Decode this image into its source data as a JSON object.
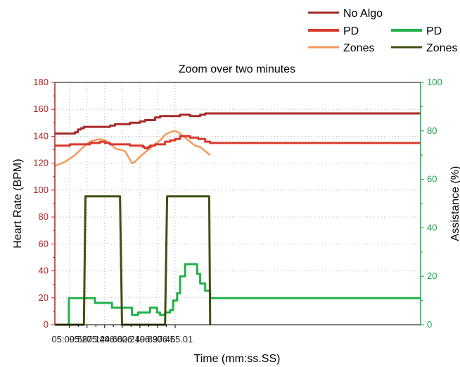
{
  "chart_data": {
    "type": "line",
    "title": "Zoom over two minutes",
    "xlabel": "Time (mm:ss.SS)",
    "ylabel_left": "Heart Rate (BPM)",
    "ylabel_right": "Assistance (%)",
    "x_unit": "seconds",
    "xlim": [
      295,
      660
    ],
    "x_ticks": [
      309.58,
      327.12,
      344.68,
      362.24,
      379.89,
      397.46,
      415.01
    ],
    "x_tick_labels": [
      "05:09.58",
      "05:27.12",
      "05:44.68",
      "06:02.24",
      "06:19.89",
      "06:37.46",
      "06:55.01"
    ],
    "ylim_left": [
      0,
      180
    ],
    "y_ticks_left": [
      0,
      20,
      40,
      60,
      80,
      100,
      120,
      140,
      160,
      180
    ],
    "ylim_right": [
      0,
      100
    ],
    "y_ticks_right": [
      0,
      20,
      40,
      60,
      80,
      100
    ],
    "grid": true,
    "legend_heart": [
      "No Algo",
      "PD",
      "Zones"
    ],
    "legend_assist": [
      "PD",
      "Zones"
    ],
    "colors": {
      "no_algo": "#a52a2a",
      "pd_hr": "#d83a2e",
      "zones_hr": "#f4995c",
      "pd_assist": "#22b04b",
      "zones_assist": "#3f4f12",
      "left_axis": "#b22222",
      "right_axis": "#1aa34a"
    },
    "series": [
      {
        "name": "No Algo",
        "axis": "left",
        "style": "step",
        "x": [
          295,
          315,
          318,
          321,
          324,
          327,
          350,
          355,
          360,
          365,
          370,
          380,
          385,
          395,
          400,
          420,
          425,
          430,
          440,
          445,
          450
        ],
        "values": [
          142,
          143,
          145,
          146,
          147,
          147,
          148,
          149,
          149,
          149,
          150,
          151,
          152,
          154,
          155,
          156,
          156,
          155,
          156,
          157,
          157
        ]
      },
      {
        "name": "PD",
        "axis": "left",
        "style": "step",
        "x": [
          295,
          310,
          330,
          340,
          345,
          350,
          370,
          380,
          383,
          385,
          388,
          390,
          395,
          400,
          405,
          410,
          415,
          420,
          425,
          430,
          438,
          445,
          450
        ],
        "values": [
          133,
          134,
          135,
          136,
          135,
          134,
          133,
          133,
          132,
          131,
          132,
          133,
          134,
          134,
          136,
          137,
          138,
          140,
          140,
          139,
          138,
          136,
          135
        ]
      },
      {
        "name": "Zones",
        "axis": "left",
        "style": "line",
        "x": [
          295,
          305,
          315,
          325,
          330,
          335,
          340,
          345,
          350,
          355,
          360,
          365,
          372,
          375,
          380,
          385,
          390,
          395,
          400,
          405,
          410,
          415,
          420,
          425,
          430,
          435,
          440,
          445,
          450
        ],
        "values": [
          118,
          121,
          126,
          133,
          136,
          137,
          138,
          137,
          135,
          131,
          130,
          129,
          120,
          121,
          125,
          128,
          131,
          134,
          137,
          141,
          143,
          144,
          142,
          139,
          136,
          133,
          132,
          129,
          126
        ]
      },
      {
        "name": "PD",
        "axis": "right",
        "style": "step",
        "x": [
          295,
          309,
          327,
          335,
          345,
          352,
          365,
          372,
          378,
          385,
          390,
          393,
          397,
          400,
          405,
          410,
          413,
          417,
          420,
          425,
          433,
          437,
          440,
          445,
          450
        ],
        "values": [
          0,
          11,
          11,
          9,
          9,
          7,
          7,
          4,
          5,
          5,
          7,
          7,
          5,
          4,
          5,
          6,
          10,
          13,
          20,
          25,
          25,
          21,
          17,
          14,
          11
        ]
      },
      {
        "name": "Zones",
        "axis": "right",
        "style": "line",
        "x": [
          295,
          324,
          325.5,
          360,
          362,
          405,
          407,
          449,
          450
        ],
        "values": [
          0,
          0,
          53,
          53,
          0,
          0,
          53,
          53,
          0
        ]
      }
    ]
  }
}
